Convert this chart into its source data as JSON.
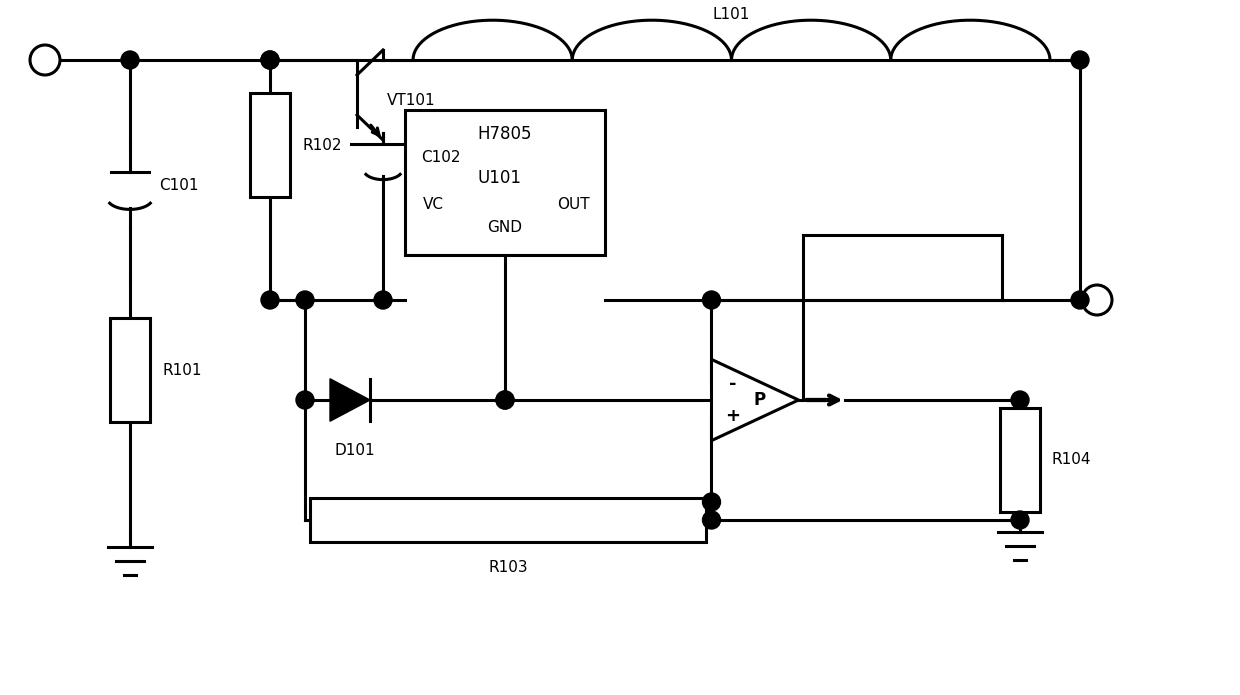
{
  "bg": "#ffffff",
  "lc": "#000000",
  "LW": 2.2,
  "figsize": [
    12.4,
    6.95
  ],
  "dpi": 100,
  "xlim": [
    0,
    12.4
  ],
  "ylim": [
    0,
    6.95
  ],
  "labels": {
    "C101": "C101",
    "R101": "R101",
    "R102": "R102",
    "C102": "C102",
    "VT101": "VT101",
    "L101": "L101",
    "U101": "U101",
    "H7805": "H7805",
    "VC": "VC",
    "OUT": "OUT",
    "GND": "GND",
    "D101": "D101",
    "R103": "R103",
    "R104": "R104",
    "P": "P"
  }
}
